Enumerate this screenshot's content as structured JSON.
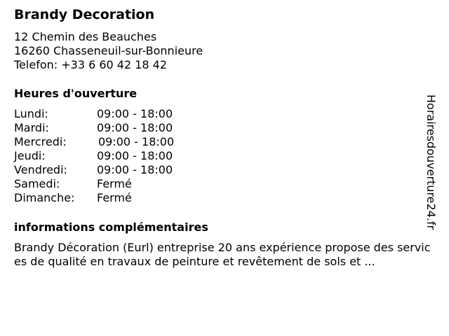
{
  "business": {
    "name": "Brandy Decoration",
    "address_line1": "12 Chemin des Beauches",
    "address_line2": "16260 Chasseneuil-sur-Bonnieure",
    "phone": "Telefon: +33 6 60 42 18 42"
  },
  "hours": {
    "heading": "Heures d'ouverture",
    "rows": [
      {
        "day": "Lundi:",
        "time": "09:00 - 18:00"
      },
      {
        "day": "Mardi:",
        "time": "09:00 - 18:00"
      },
      {
        "day": "Mercredi:",
        "time": "09:00 - 18:00"
      },
      {
        "day": "Jeudi:",
        "time": "09:00 - 18:00"
      },
      {
        "day": "Vendredi:",
        "time": "09:00 - 18:00"
      },
      {
        "day": "Samedi:",
        "time": "Fermé"
      },
      {
        "day": "Dimanche:",
        "time": "Fermé"
      }
    ]
  },
  "info": {
    "heading": "informations complémentaires",
    "text": "Brandy Décoration (Eurl) entreprise 20 ans expérience propose des services de qualité en travaux de peinture et revêtement de sols et ..."
  },
  "watermark": "Horairesdouverture24.fr"
}
